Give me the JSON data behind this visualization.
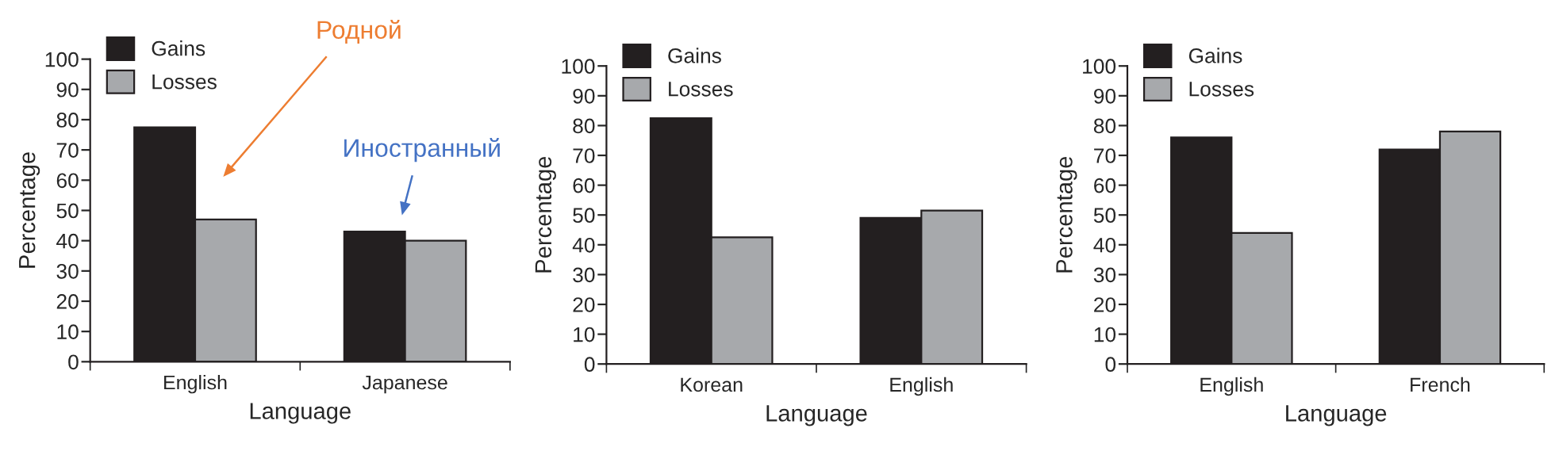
{
  "chart_data": [
    {
      "type": "bar",
      "categories": [
        "English",
        "Japanese"
      ],
      "xlabel": "Language",
      "ylabel": "Percentage",
      "ylim": [
        0,
        100
      ],
      "yticks": [
        0,
        10,
        20,
        30,
        40,
        50,
        60,
        70,
        80,
        90,
        100
      ],
      "legend": "top left",
      "grid": false,
      "series": [
        {
          "name": "Gains",
          "color": "#231f20",
          "values": [
            77.5,
            43
          ]
        },
        {
          "name": "Losses",
          "color": "#a7a9ac",
          "values": [
            47,
            40
          ]
        }
      ],
      "annotations": [
        "Родной",
        "Иностранный"
      ]
    },
    {
      "type": "bar",
      "categories": [
        "Korean",
        "English"
      ],
      "xlabel": "Language",
      "ylabel": "Percentage",
      "ylim": [
        0,
        100
      ],
      "yticks": [
        0,
        10,
        20,
        30,
        40,
        50,
        60,
        70,
        80,
        90,
        100
      ],
      "legend": "top left",
      "grid": false,
      "series": [
        {
          "name": "Gains",
          "color": "#231f20",
          "values": [
            82.5,
            49
          ]
        },
        {
          "name": "Losses",
          "color": "#a7a9ac",
          "values": [
            42.5,
            51.5
          ]
        }
      ]
    },
    {
      "type": "bar",
      "categories": [
        "English",
        "French"
      ],
      "xlabel": "Language",
      "ylabel": "Percentage",
      "ylim": [
        0,
        100
      ],
      "yticks": [
        0,
        10,
        20,
        30,
        40,
        50,
        60,
        70,
        80,
        90,
        100
      ],
      "legend": "top left",
      "grid": false,
      "series": [
        {
          "name": "Gains",
          "color": "#231f20",
          "values": [
            76,
            72
          ]
        },
        {
          "name": "Losses",
          "color": "#a7a9ac",
          "values": [
            44,
            78
          ]
        }
      ]
    }
  ]
}
